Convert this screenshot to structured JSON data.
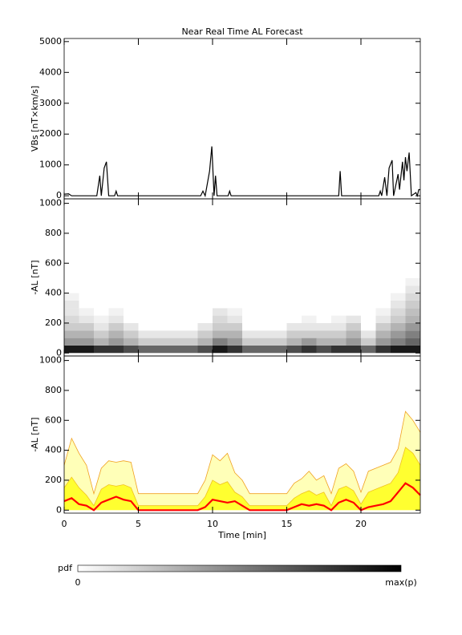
{
  "chart_data": [
    {
      "type": "line",
      "title": "Near Real Time AL Forecast",
      "ylabel": "VBs [nT×km/s]",
      "color": "#000000",
      "x": [
        0,
        0.3,
        0.5,
        2.2,
        2.4,
        2.5,
        2.7,
        2.85,
        3.0,
        3.4,
        3.5,
        3.6,
        9.2,
        9.35,
        9.5,
        9.8,
        9.95,
        10.1,
        10.2,
        10.3,
        11.05,
        11.15,
        11.25,
        18.5,
        18.6,
        18.7,
        21.2,
        21.3,
        21.4,
        21.6,
        21.75,
        21.9,
        22.1,
        22.2,
        22.5,
        22.6,
        22.8,
        22.9,
        23.0,
        23.1,
        23.25,
        23.4,
        23.7,
        23.8,
        23.9,
        24
      ],
      "values": [
        50,
        60,
        0,
        0,
        650,
        0,
        900,
        1100,
        0,
        0,
        150,
        0,
        0,
        150,
        0,
        800,
        1600,
        0,
        650,
        0,
        0,
        150,
        0,
        0,
        800,
        0,
        0,
        150,
        0,
        600,
        0,
        900,
        1150,
        0,
        700,
        200,
        1100,
        500,
        1250,
        800,
        1400,
        0,
        100,
        0,
        200,
        200
      ],
      "xlim": [
        0,
        24
      ],
      "ylim": [
        -100,
        5100
      ],
      "yticks": [
        0,
        1000,
        2000,
        3000,
        4000,
        5000
      ]
    },
    {
      "type": "heatmap",
      "ylabel": "-AL [nT]",
      "xlim": [
        0,
        24
      ],
      "ylim": [
        -20,
        1030
      ],
      "yticks": [
        0,
        200,
        400,
        600,
        800,
        1000
      ],
      "x_bins": [
        0,
        1,
        2,
        3,
        4,
        5,
        6,
        7,
        8,
        9,
        10,
        11,
        12,
        13,
        14,
        15,
        16,
        17,
        18,
        19,
        20,
        21,
        22,
        23,
        24
      ],
      "y_bins": [
        0,
        50,
        100,
        150,
        200,
        250,
        300,
        350,
        400,
        450,
        500
      ],
      "z": [
        [
          0.9,
          0.4,
          0.3,
          0.2,
          0.15,
          0.1,
          0.1,
          0.05,
          0,
          0
        ],
        [
          0.9,
          0.4,
          0.3,
          0.2,
          0.1,
          0.05,
          0,
          0,
          0,
          0
        ],
        [
          0.8,
          0.3,
          0.2,
          0.1,
          0.05,
          0,
          0,
          0,
          0,
          0
        ],
        [
          0.8,
          0.4,
          0.3,
          0.2,
          0.1,
          0.05,
          0,
          0,
          0,
          0
        ],
        [
          0.7,
          0.3,
          0.2,
          0.1,
          0,
          0,
          0,
          0,
          0,
          0
        ],
        [
          0.6,
          0.2,
          0.1,
          0,
          0,
          0,
          0,
          0,
          0,
          0
        ],
        [
          0.6,
          0.2,
          0.1,
          0,
          0,
          0,
          0,
          0,
          0,
          0
        ],
        [
          0.6,
          0.2,
          0.1,
          0,
          0,
          0,
          0,
          0,
          0,
          0
        ],
        [
          0.6,
          0.2,
          0.1,
          0,
          0,
          0,
          0,
          0,
          0,
          0
        ],
        [
          0.7,
          0.3,
          0.2,
          0.1,
          0,
          0,
          0,
          0,
          0,
          0
        ],
        [
          0.9,
          0.5,
          0.3,
          0.2,
          0.15,
          0.1,
          0,
          0,
          0,
          0
        ],
        [
          0.8,
          0.4,
          0.3,
          0.2,
          0.1,
          0.05,
          0,
          0,
          0,
          0
        ],
        [
          0.6,
          0.2,
          0.1,
          0,
          0,
          0,
          0,
          0,
          0,
          0
        ],
        [
          0.6,
          0.2,
          0.1,
          0,
          0,
          0,
          0,
          0,
          0,
          0
        ],
        [
          0.6,
          0.2,
          0.1,
          0,
          0,
          0,
          0,
          0,
          0,
          0
        ],
        [
          0.7,
          0.3,
          0.2,
          0.1,
          0,
          0,
          0,
          0,
          0,
          0
        ],
        [
          0.8,
          0.4,
          0.2,
          0.1,
          0.05,
          0,
          0,
          0,
          0,
          0
        ],
        [
          0.7,
          0.3,
          0.2,
          0.1,
          0,
          0,
          0,
          0,
          0,
          0
        ],
        [
          0.8,
          0.3,
          0.2,
          0.1,
          0.05,
          0,
          0,
          0,
          0,
          0
        ],
        [
          0.8,
          0.4,
          0.3,
          0.2,
          0.1,
          0,
          0,
          0,
          0,
          0
        ],
        [
          0.6,
          0.2,
          0.1,
          0,
          0,
          0,
          0,
          0,
          0,
          0
        ],
        [
          0.8,
          0.4,
          0.3,
          0.2,
          0.1,
          0.05,
          0,
          0,
          0,
          0
        ],
        [
          0.9,
          0.5,
          0.4,
          0.3,
          0.2,
          0.15,
          0.1,
          0.05,
          0,
          0
        ],
        [
          0.9,
          0.6,
          0.5,
          0.4,
          0.3,
          0.25,
          0.2,
          0.15,
          0.1,
          0.05
        ]
      ]
    },
    {
      "type": "band",
      "ylabel": "-AL [nT]",
      "xlabel": "Time [min]",
      "xlim": [
        0,
        24
      ],
      "ylim": [
        -20,
        1030
      ],
      "yticks": [
        0,
        200,
        400,
        600,
        800,
        1000
      ],
      "xticks": [
        0,
        5,
        10,
        15,
        20
      ],
      "x": [
        0,
        0.5,
        1,
        1.5,
        2,
        2.5,
        3,
        3.5,
        4,
        4.5,
        5,
        5.5,
        6,
        6.5,
        7,
        7.5,
        8,
        8.5,
        9,
        9.5,
        10,
        10.5,
        11,
        11.5,
        12,
        12.5,
        13,
        13.5,
        14,
        14.5,
        15,
        15.5,
        16,
        16.5,
        17,
        17.5,
        18,
        18.5,
        19,
        19.5,
        20,
        20.5,
        21,
        21.5,
        22,
        22.5,
        23,
        23.5,
        24
      ],
      "series": [
        {
          "color": "#f0a020",
          "fill": "#ffffb8",
          "values": [
            300,
            480,
            380,
            300,
            110,
            280,
            330,
            320,
            330,
            320,
            110,
            110,
            110,
            110,
            110,
            110,
            110,
            110,
            110,
            200,
            370,
            330,
            380,
            250,
            200,
            110,
            110,
            110,
            110,
            110,
            110,
            180,
            210,
            260,
            200,
            230,
            110,
            280,
            310,
            260,
            120,
            260,
            280,
            300,
            320,
            410,
            660,
            600,
            520
          ]
        },
        {
          "color": "#f0c020",
          "fill": "#ffff30",
          "values": [
            150,
            220,
            150,
            100,
            30,
            140,
            170,
            160,
            170,
            150,
            30,
            30,
            30,
            30,
            30,
            30,
            30,
            30,
            30,
            90,
            200,
            170,
            190,
            120,
            90,
            30,
            30,
            30,
            30,
            30,
            30,
            80,
            110,
            130,
            100,
            120,
            30,
            140,
            160,
            130,
            40,
            120,
            140,
            160,
            180,
            250,
            420,
            380,
            300
          ]
        },
        {
          "color": "#ff0000",
          "values": [
            60,
            80,
            40,
            30,
            0,
            50,
            70,
            90,
            70,
            60,
            0,
            0,
            0,
            0,
            0,
            0,
            0,
            0,
            0,
            20,
            70,
            60,
            50,
            60,
            30,
            0,
            0,
            0,
            0,
            0,
            0,
            20,
            40,
            30,
            40,
            30,
            0,
            50,
            70,
            50,
            0,
            20,
            30,
            40,
            60,
            120,
            180,
            150,
            100
          ]
        }
      ]
    }
  ],
  "colorbar": {
    "label": "pdf",
    "min_label": "0",
    "max_label": "max(p)"
  }
}
